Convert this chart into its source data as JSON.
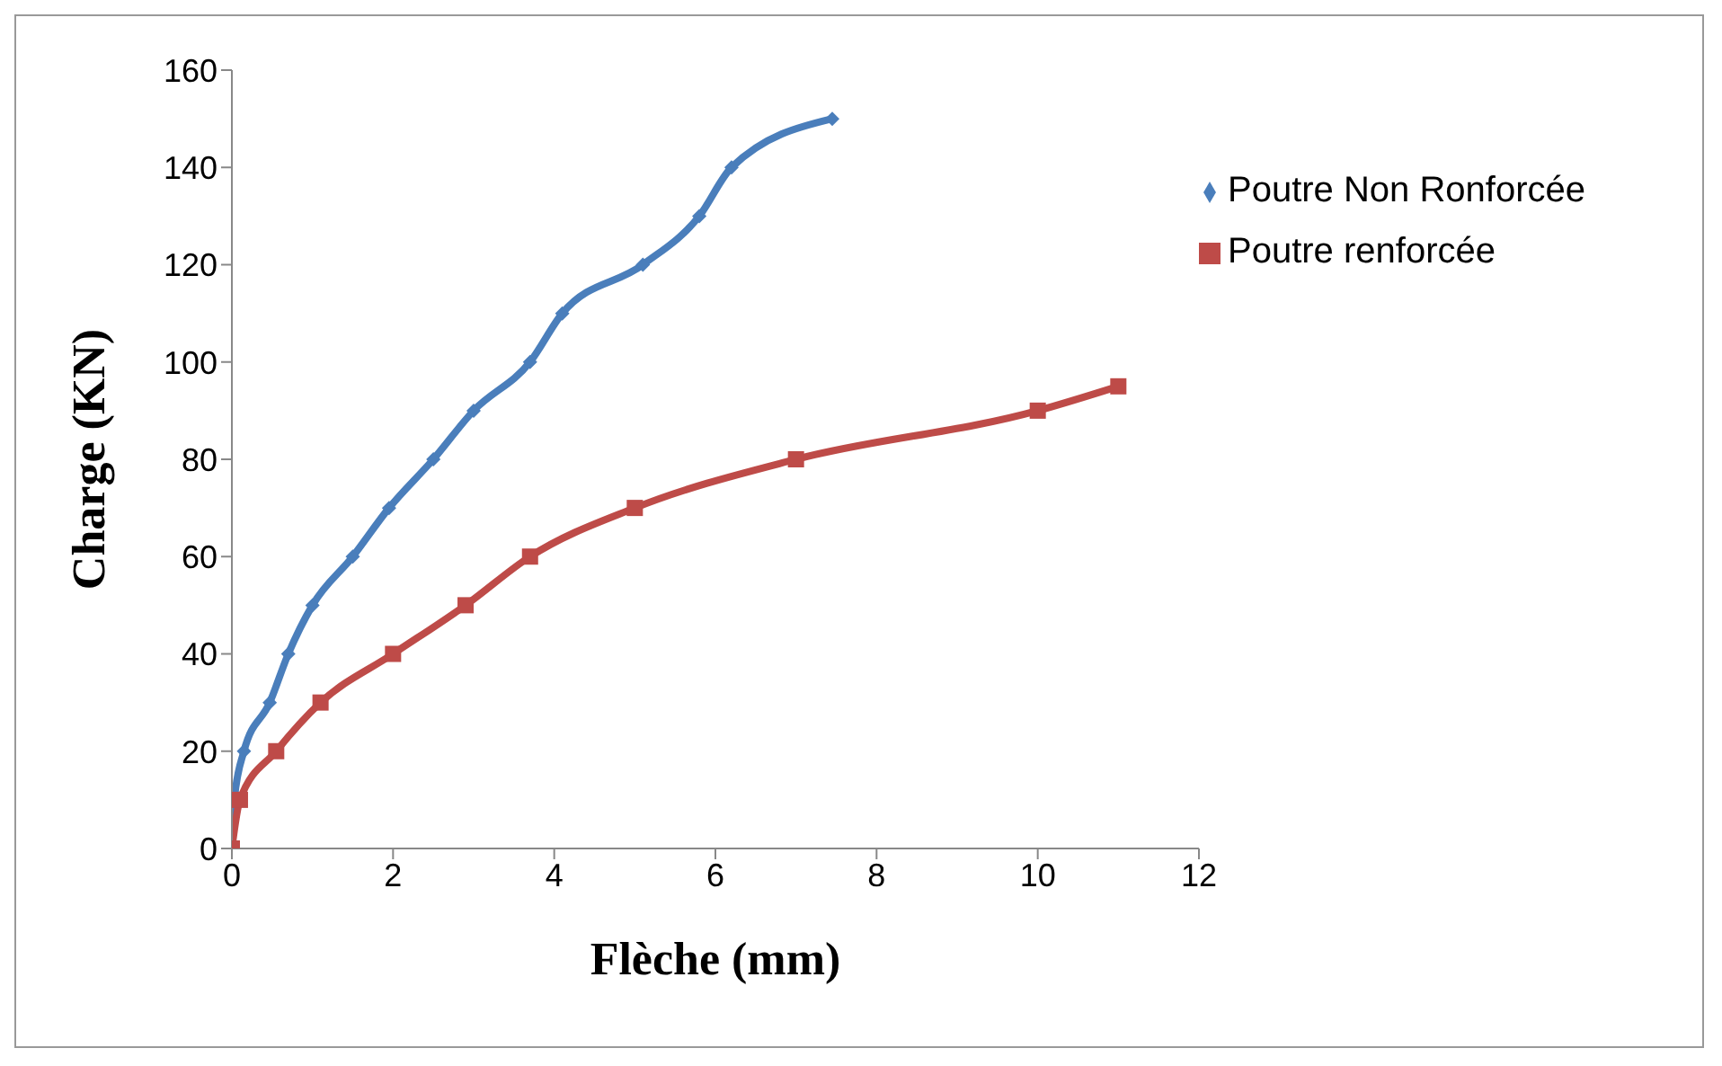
{
  "chart_data": {
    "type": "line",
    "xlabel": "Flèche (mm)",
    "ylabel": "Charge (KN)",
    "xlim": [
      0,
      12
    ],
    "xticks": [
      0,
      2,
      4,
      6,
      8,
      10,
      12
    ],
    "ylim": [
      0,
      160
    ],
    "yticks": [
      0,
      20,
      40,
      60,
      80,
      100,
      120,
      140,
      160
    ],
    "grid": false,
    "legend": "top right",
    "line_style": "solid",
    "series": [
      {
        "name": "Poutre Non Ronforcée",
        "color": "#4a7ebb",
        "marker": "diamond",
        "x": [
          0,
          0.03,
          0.15,
          0.47,
          0.7,
          1.0,
          1.5,
          1.95,
          2.5,
          3.0,
          3.7,
          4.1,
          5.1,
          5.8,
          6.2,
          7.45
        ],
        "values": [
          0,
          10,
          20,
          30,
          40,
          50,
          60,
          70,
          80,
          90,
          100,
          110,
          120,
          130,
          140,
          150
        ]
      },
      {
        "name": "Poutre renforcée",
        "color": "#be4b48",
        "marker": "square",
        "x": [
          0,
          0.1,
          0.55,
          1.1,
          2.0,
          2.9,
          3.7,
          5.0,
          7.0,
          10.0,
          11.0
        ],
        "values": [
          0,
          10,
          20,
          30,
          40,
          50,
          60,
          70,
          80,
          90,
          95
        ]
      }
    ]
  }
}
